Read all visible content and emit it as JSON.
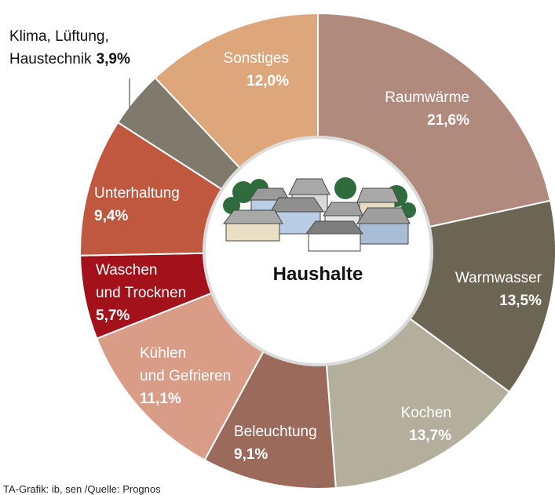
{
  "chart_data": {
    "type": "donut",
    "center_label": "Haushalte",
    "categories": [
      "Raumwärme",
      "Warmwasser",
      "Kochen",
      "Beleuchtung",
      "Kühlen\nund Gefrieren",
      "Waschen\nund Trocknen",
      "Unterhaltung",
      "Klima, Lüftung,\nHaustechnik",
      "Sonstiges"
    ],
    "values": [
      21.6,
      13.5,
      13.7,
      9.1,
      11.1,
      5.7,
      9.4,
      3.9,
      12.0
    ],
    "value_labels": [
      "21,6%",
      "13,5%",
      "13,7%",
      "9,1%",
      "11,1%",
      "5,7%",
      "9,4%",
      "3,9%",
      "12,0%"
    ],
    "colors": [
      "#b08b7d",
      "#6c6553",
      "#b4ae9d",
      "#9b6a5b",
      "#d99c86",
      "#a3121b",
      "#c0573f",
      "#7f7a6c",
      "#dea67b"
    ],
    "source": "TA-Grafik: ib, sen /Quelle: Prognos"
  }
}
